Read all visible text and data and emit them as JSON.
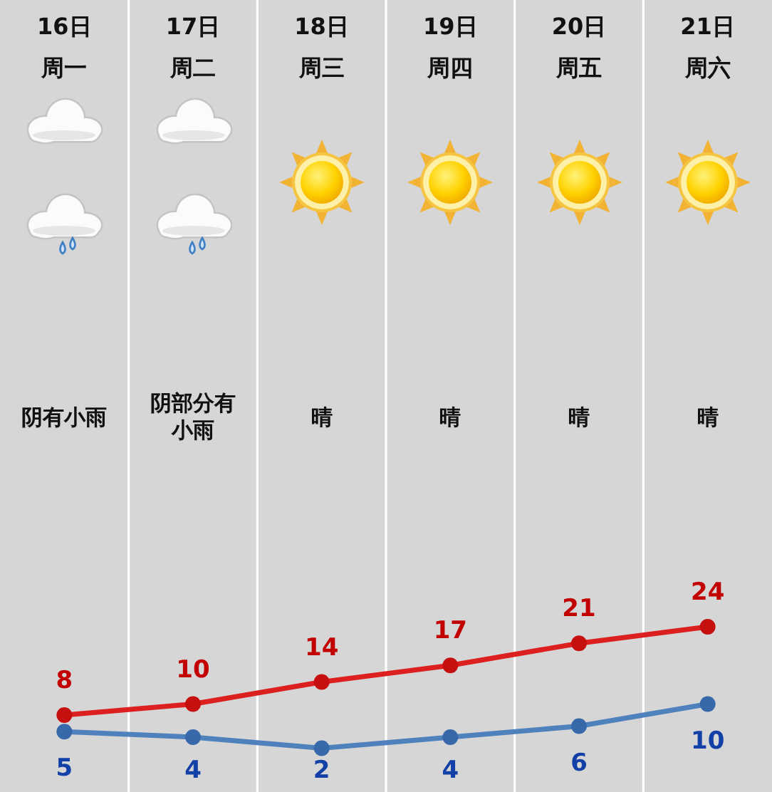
{
  "chart_data": {
    "type": "line",
    "categories": [
      "16日周一",
      "17日周二",
      "18日周三",
      "19日周四",
      "20日周五",
      "21日周六"
    ],
    "series": [
      {
        "color": "#dc1f1f",
        "values": [
          8,
          10,
          14,
          17,
          21,
          24
        ]
      },
      {
        "color": "#4f81bd",
        "values": [
          5,
          4,
          2,
          4,
          6,
          10
        ]
      }
    ],
    "data_labels": true,
    "marker": "circle",
    "grid": "x",
    "annotations": [
      "阴有小雨",
      "阴部分有小雨",
      "晴",
      "晴",
      "晴",
      "晴"
    ]
  }
}
